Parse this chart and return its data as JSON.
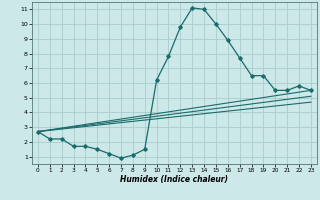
{
  "xlabel": "Humidex (Indice chaleur)",
  "xlim": [
    -0.5,
    23.5
  ],
  "ylim": [
    0.5,
    11.5
  ],
  "yticks": [
    1,
    2,
    3,
    4,
    5,
    6,
    7,
    8,
    9,
    10,
    11
  ],
  "xticks": [
    0,
    1,
    2,
    3,
    4,
    5,
    6,
    7,
    8,
    9,
    10,
    11,
    12,
    13,
    14,
    15,
    16,
    17,
    18,
    19,
    20,
    21,
    22,
    23
  ],
  "bg_color": "#cce8e8",
  "grid_color": "#aacccc",
  "line_color": "#1a6b6b",
  "main_line": {
    "x": [
      0,
      1,
      2,
      3,
      4,
      5,
      6,
      7,
      8,
      9,
      10,
      11,
      12,
      13,
      14,
      15,
      16,
      17,
      18,
      19,
      20,
      21,
      22,
      23
    ],
    "y": [
      2.7,
      2.2,
      2.2,
      1.7,
      1.7,
      1.5,
      1.2,
      0.9,
      1.1,
      1.5,
      6.2,
      7.8,
      9.8,
      11.1,
      11.0,
      10.0,
      8.9,
      7.7,
      6.5,
      6.5,
      5.5,
      5.5,
      5.8,
      5.5
    ]
  },
  "straight_lines": [
    {
      "x": [
        0,
        23
      ],
      "y": [
        2.7,
        5.5
      ]
    },
    {
      "x": [
        0,
        23
      ],
      "y": [
        2.7,
        5.1
      ]
    },
    {
      "x": [
        0,
        23
      ],
      "y": [
        2.7,
        4.7
      ]
    }
  ]
}
